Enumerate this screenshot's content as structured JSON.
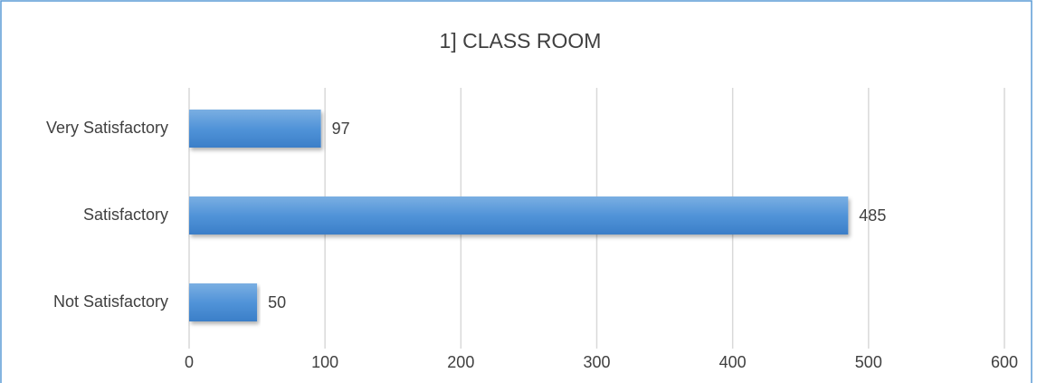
{
  "chart_data": {
    "type": "bar",
    "orientation": "horizontal",
    "title": "1] CLASS ROOM",
    "categories": [
      "Very Satisfactory",
      "Satisfactory",
      "Not Satisfactory"
    ],
    "values": [
      97,
      485,
      50
    ],
    "color": "#4a8ad4",
    "xlim": [
      0,
      600
    ],
    "xticks": [
      0,
      100,
      200,
      300,
      400,
      500,
      600
    ],
    "grid": true
  }
}
